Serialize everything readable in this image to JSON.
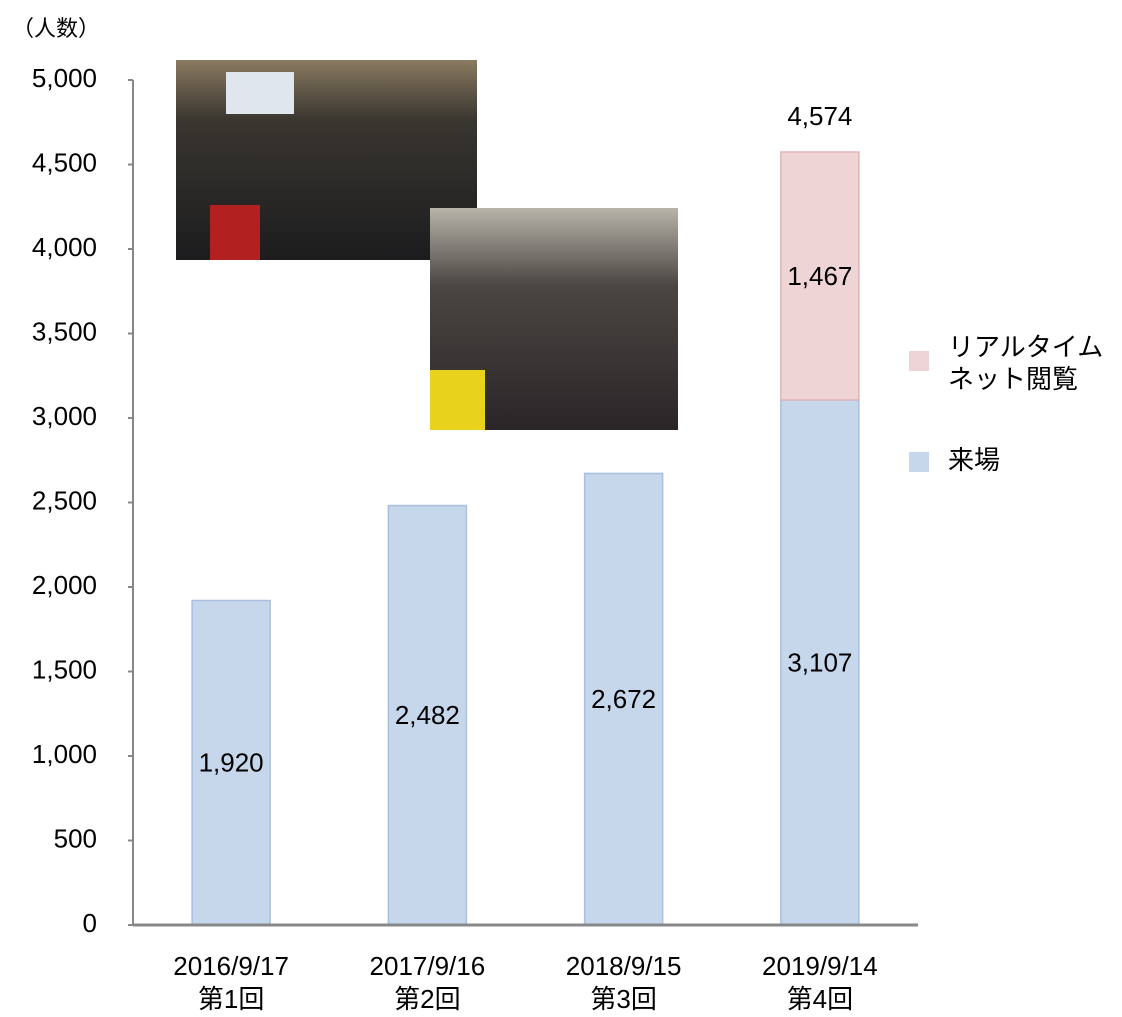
{
  "chart_data": {
    "type": "stacked-bar",
    "y_label": "（人数）",
    "categories": [
      [
        "2016/9/17",
        "第1回"
      ],
      [
        "2017/9/16",
        "第2回"
      ],
      [
        "2018/9/15",
        "第3回"
      ],
      [
        "2019/9/14",
        "第4回"
      ]
    ],
    "series": [
      {
        "name": "来場",
        "color": "#c6d6eb",
        "values": [
          1920,
          2482,
          2672,
          3107
        ],
        "value_labels": [
          "1,920",
          "2,482",
          "2,672",
          "3,107"
        ]
      },
      {
        "name": "リアルタイムネット閲覧",
        "color": "#efd4d6",
        "values": [
          null,
          null,
          null,
          1467
        ],
        "value_labels": [
          null,
          null,
          null,
          "1,467"
        ]
      }
    ],
    "totals": {
      "values": [
        null,
        null,
        null,
        4574
      ],
      "value_labels": [
        null,
        null,
        null,
        "4,574"
      ]
    },
    "ylim": [
      0,
      5000
    ],
    "yticks": [
      0,
      500,
      {
        "value": 1000,
        "label": "1,000"
      },
      {
        "value": 1500,
        "label": "1,500"
      },
      {
        "value": 2000,
        "label": "2,000"
      },
      {
        "value": 2500,
        "label": "2,500"
      },
      {
        "value": 3000,
        "label": "3,000"
      },
      {
        "value": 3500,
        "label": "3,500"
      },
      {
        "value": 4000,
        "label": "4,000"
      },
      {
        "value": 4500,
        "label": "4,500"
      },
      {
        "value": 5000,
        "label": "5,000"
      }
    ],
    "grid": false
  }
}
